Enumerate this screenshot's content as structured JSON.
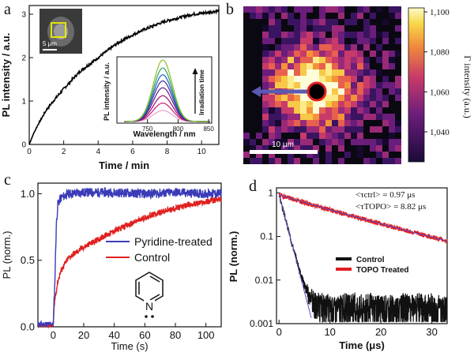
{
  "chart_data": [
    {
      "panel": "a",
      "type": "line",
      "xlabel": "Time / min",
      "ylabel": "PL intensity / a.u.",
      "xlim": [
        0,
        11
      ],
      "ylim": [
        0,
        3.2
      ],
      "xticks": [
        "0",
        "2",
        "4",
        "6",
        "8",
        "10"
      ],
      "yticks": [
        "0",
        "1",
        "2",
        "3"
      ],
      "series": [
        {
          "values_x": [
            0,
            0.25,
            0.5,
            1,
            1.5,
            2,
            2.5,
            3,
            3.5,
            4,
            4.5,
            5,
            5.5,
            6,
            6.5,
            7,
            7.5,
            8,
            8.5,
            9,
            9.5,
            10,
            10.5,
            11
          ],
          "values_y": [
            0,
            0.25,
            0.45,
            0.8,
            1.05,
            1.28,
            1.5,
            1.7,
            1.85,
            2.0,
            2.15,
            2.3,
            2.42,
            2.52,
            2.62,
            2.7,
            2.78,
            2.85,
            2.9,
            2.95,
            3.0,
            3.02,
            3.05,
            3.08
          ],
          "color": "#000000"
        }
      ],
      "inset_image_scale": "5 μm",
      "inset": {
        "type": "line",
        "xlabel": "Wavelength / nm",
        "ylabel": "PL intensity / a.u.",
        "xticks": [
          "750",
          "800",
          "850"
        ],
        "xlim": [
          700,
          855
        ],
        "arrow_label": "Irradiation time",
        "peak_nm": 775,
        "width_nm": 22,
        "amplitudes": [
          0.18,
          0.3,
          0.42,
          0.55,
          0.66,
          0.76,
          0.87,
          1.0
        ],
        "colors": [
          "#e9a3c9",
          "#c51b7d",
          "#9e0d6a",
          "#5e1a8c",
          "#3a2fa0",
          "#1f5fc4",
          "#2ca25f",
          "#8fbf2f"
        ]
      }
    },
    {
      "panel": "b",
      "type": "heatmap",
      "colorbar_label": "Γ intensity (a.u.)",
      "colorbar_ticks": [
        "1,100",
        "1,080",
        "1,060",
        "1,040"
      ],
      "colorbar_range": [
        1025,
        1102
      ],
      "scale_bar": "10 μm"
    },
    {
      "panel": "c",
      "type": "line",
      "xlabel": "Time (s)",
      "ylabel": "PL (norm.)",
      "xlim": [
        -10,
        110
      ],
      "ylim": [
        0,
        1.08
      ],
      "xticks": [
        "0",
        "20",
        "40",
        "60",
        "80",
        "100"
      ],
      "yticks": [
        "0.0",
        "0.5",
        "1.0"
      ],
      "legend": [
        "Pyridine-treated",
        "Control"
      ],
      "series": [
        {
          "name": "Pyridine-treated",
          "color": "#3b3bb8",
          "x": [
            -10,
            0,
            1,
            2,
            3,
            5,
            10,
            20,
            40,
            60,
            80,
            100,
            110
          ],
          "y": [
            0.02,
            0.02,
            0.3,
            0.75,
            0.92,
            0.97,
            1.0,
            1.01,
            1.01,
            1.0,
            1.01,
            1.0,
            1.0
          ]
        },
        {
          "name": "Control",
          "color": "#e02020",
          "x": [
            -10,
            0,
            1,
            3,
            5,
            10,
            20,
            30,
            40,
            50,
            60,
            70,
            80,
            90,
            100,
            110
          ],
          "y": [
            0.01,
            0.01,
            0.2,
            0.34,
            0.42,
            0.52,
            0.6,
            0.66,
            0.72,
            0.77,
            0.82,
            0.86,
            0.89,
            0.92,
            0.94,
            0.96
          ]
        }
      ]
    },
    {
      "panel": "d",
      "type": "line",
      "xlabel": "Time (μs)",
      "ylabel": "PL (norm.)",
      "yscale": "log",
      "xlim": [
        -0.5,
        33
      ],
      "ylim": [
        0.001,
        1.3
      ],
      "xticks": [
        "0",
        "10",
        "20",
        "30"
      ],
      "yticks": [
        "1",
        "0.1",
        "0.01",
        "0.001"
      ],
      "legend": [
        "Control",
        "TOPO Treated"
      ],
      "annotations": [
        "<τctrl> = 0.97 μs",
        "<τTOPO> = 8.82 μs"
      ],
      "series": [
        {
          "name": "Control",
          "color": "#111111",
          "tau_us": 0.97
        },
        {
          "name": "TOPO Treated",
          "color": "#e02020",
          "tau_us": 8.82
        }
      ]
    }
  ],
  "labels": {
    "a": "a",
    "b": "b",
    "c": "c",
    "d": "d"
  }
}
